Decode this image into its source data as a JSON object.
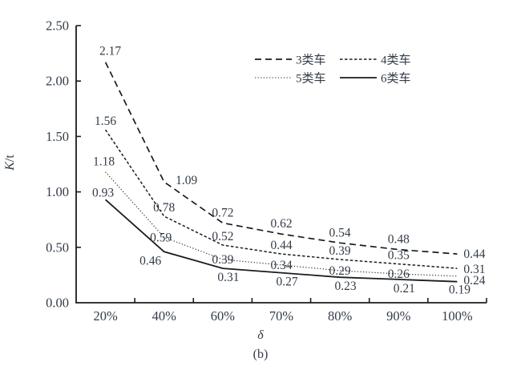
{
  "chart_data": {
    "type": "line",
    "title": "",
    "xlabel": "δ",
    "ylabel": "K/t",
    "caption": "(b)",
    "categories": [
      "20%",
      "40%",
      "60%",
      "70%",
      "80%",
      "90%",
      "100%"
    ],
    "y_tick_labels": [
      "0.00",
      "0.50",
      "1.00",
      "1.50",
      "2.00",
      "2.50"
    ],
    "ylim": [
      0,
      2.5
    ],
    "grid": false,
    "legend_position": "top-right-inside",
    "point_labels_visible": true,
    "series": [
      {
        "name": "3类车",
        "line_style": "long-dash",
        "values": [
          2.17,
          1.09,
          0.72,
          0.62,
          0.54,
          0.48,
          0.44
        ],
        "labels": [
          "2.17",
          "1.09",
          "0.72",
          "0.62",
          "0.54",
          "0.48",
          "0.44"
        ]
      },
      {
        "name": "4类车",
        "line_style": "short-dash",
        "values": [
          1.56,
          0.78,
          0.52,
          0.44,
          0.39,
          0.35,
          0.31
        ],
        "labels": [
          "1.56",
          "0.78",
          "0.52",
          "0.44",
          "0.39",
          "0.35",
          "0.31"
        ]
      },
      {
        "name": "5类车",
        "line_style": "dotted",
        "values": [
          1.18,
          0.59,
          0.39,
          0.34,
          0.29,
          0.26,
          0.24
        ],
        "labels": [
          "1.18",
          "0.59",
          "0.39",
          "0.34",
          "0.29",
          "0.26",
          "0.24"
        ]
      },
      {
        "name": "6类车",
        "line_style": "solid",
        "values": [
          0.93,
          0.46,
          0.31,
          0.27,
          0.23,
          0.21,
          0.19
        ],
        "labels": [
          "0.93",
          "0.46",
          "0.31",
          "0.27",
          "0.23",
          "0.21",
          "0.19"
        ]
      }
    ]
  },
  "colors": {
    "line": "#1c1c1c",
    "text": "#333c48",
    "background": "#ffffff"
  }
}
